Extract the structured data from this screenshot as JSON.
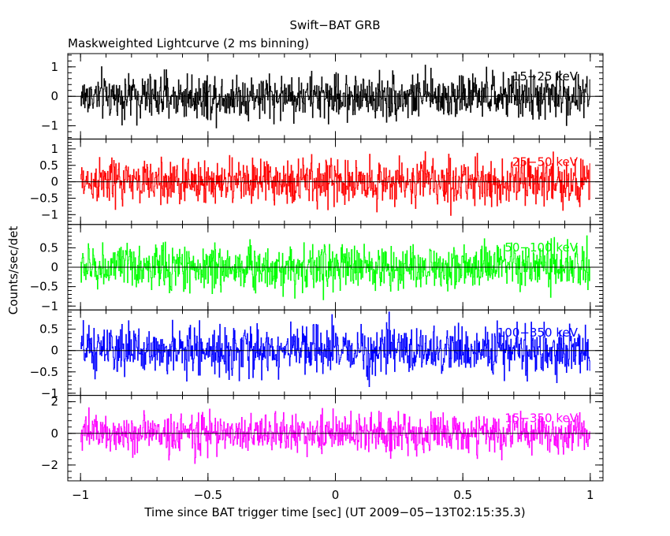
{
  "chart_data": {
    "type": "line",
    "title": "Swift−BAT GRB",
    "subtitle": "Maskweighted Lightcurve (2 ms binning)",
    "xlabel": "Time since BAT trigger time [sec] (UT 2009−05−13T02:15:35.3)",
    "ylabel": "Counts/sec/det",
    "xlim": [
      -1.05,
      1.05
    ],
    "x_ticks": [
      -1,
      -0.5,
      0,
      0.5,
      1
    ],
    "x_tick_labels": [
      "−1",
      "−0.5",
      "0",
      "0.5",
      "1"
    ],
    "x_start": -1.0,
    "x_end": 1.0,
    "bin_width_sec": 0.002,
    "series": [
      {
        "name": "15−25 keV",
        "color": "#000000",
        "ylim": [
          -1.45,
          1.45
        ],
        "y_ticks": [
          -1,
          0,
          1
        ],
        "y_tick_labels": [
          "−1",
          "0",
          "1"
        ],
        "noise_amplitude": 0.55
      },
      {
        "name": "25−50 keV",
        "color": "#ff0000",
        "ylim": [
          -1.3,
          1.3
        ],
        "y_ticks": [
          -1,
          -0.5,
          0,
          0.5,
          1
        ],
        "y_tick_labels": [
          "−1",
          "−0.5",
          "0",
          "0.5",
          "1"
        ],
        "noise_amplitude": 0.5
      },
      {
        "name": "50−100 keV",
        "color": "#00ff00",
        "ylim": [
          -1.1,
          1.1
        ],
        "y_ticks": [
          -1,
          -0.5,
          0,
          0.5
        ],
        "y_tick_labels": [
          "−1",
          "−0.5",
          "0",
          "0.5"
        ],
        "noise_amplitude": 0.42
      },
      {
        "name": "100−350 keV",
        "color": "#0000ff",
        "ylim": [
          -1.05,
          0.95
        ],
        "y_ticks": [
          -1,
          -0.5,
          0,
          0.5
        ],
        "y_tick_labels": [
          "−1",
          "−0.5",
          "0",
          "0.5"
        ],
        "noise_amplitude": 0.4
      },
      {
        "name": "15−350 keV",
        "color": "#ff00ff",
        "ylim": [
          -3.0,
          2.4
        ],
        "y_ticks": [
          -2,
          0,
          2
        ],
        "y_tick_labels": [
          "−2",
          "0",
          "2"
        ],
        "noise_amplitude": 0.9
      }
    ]
  }
}
